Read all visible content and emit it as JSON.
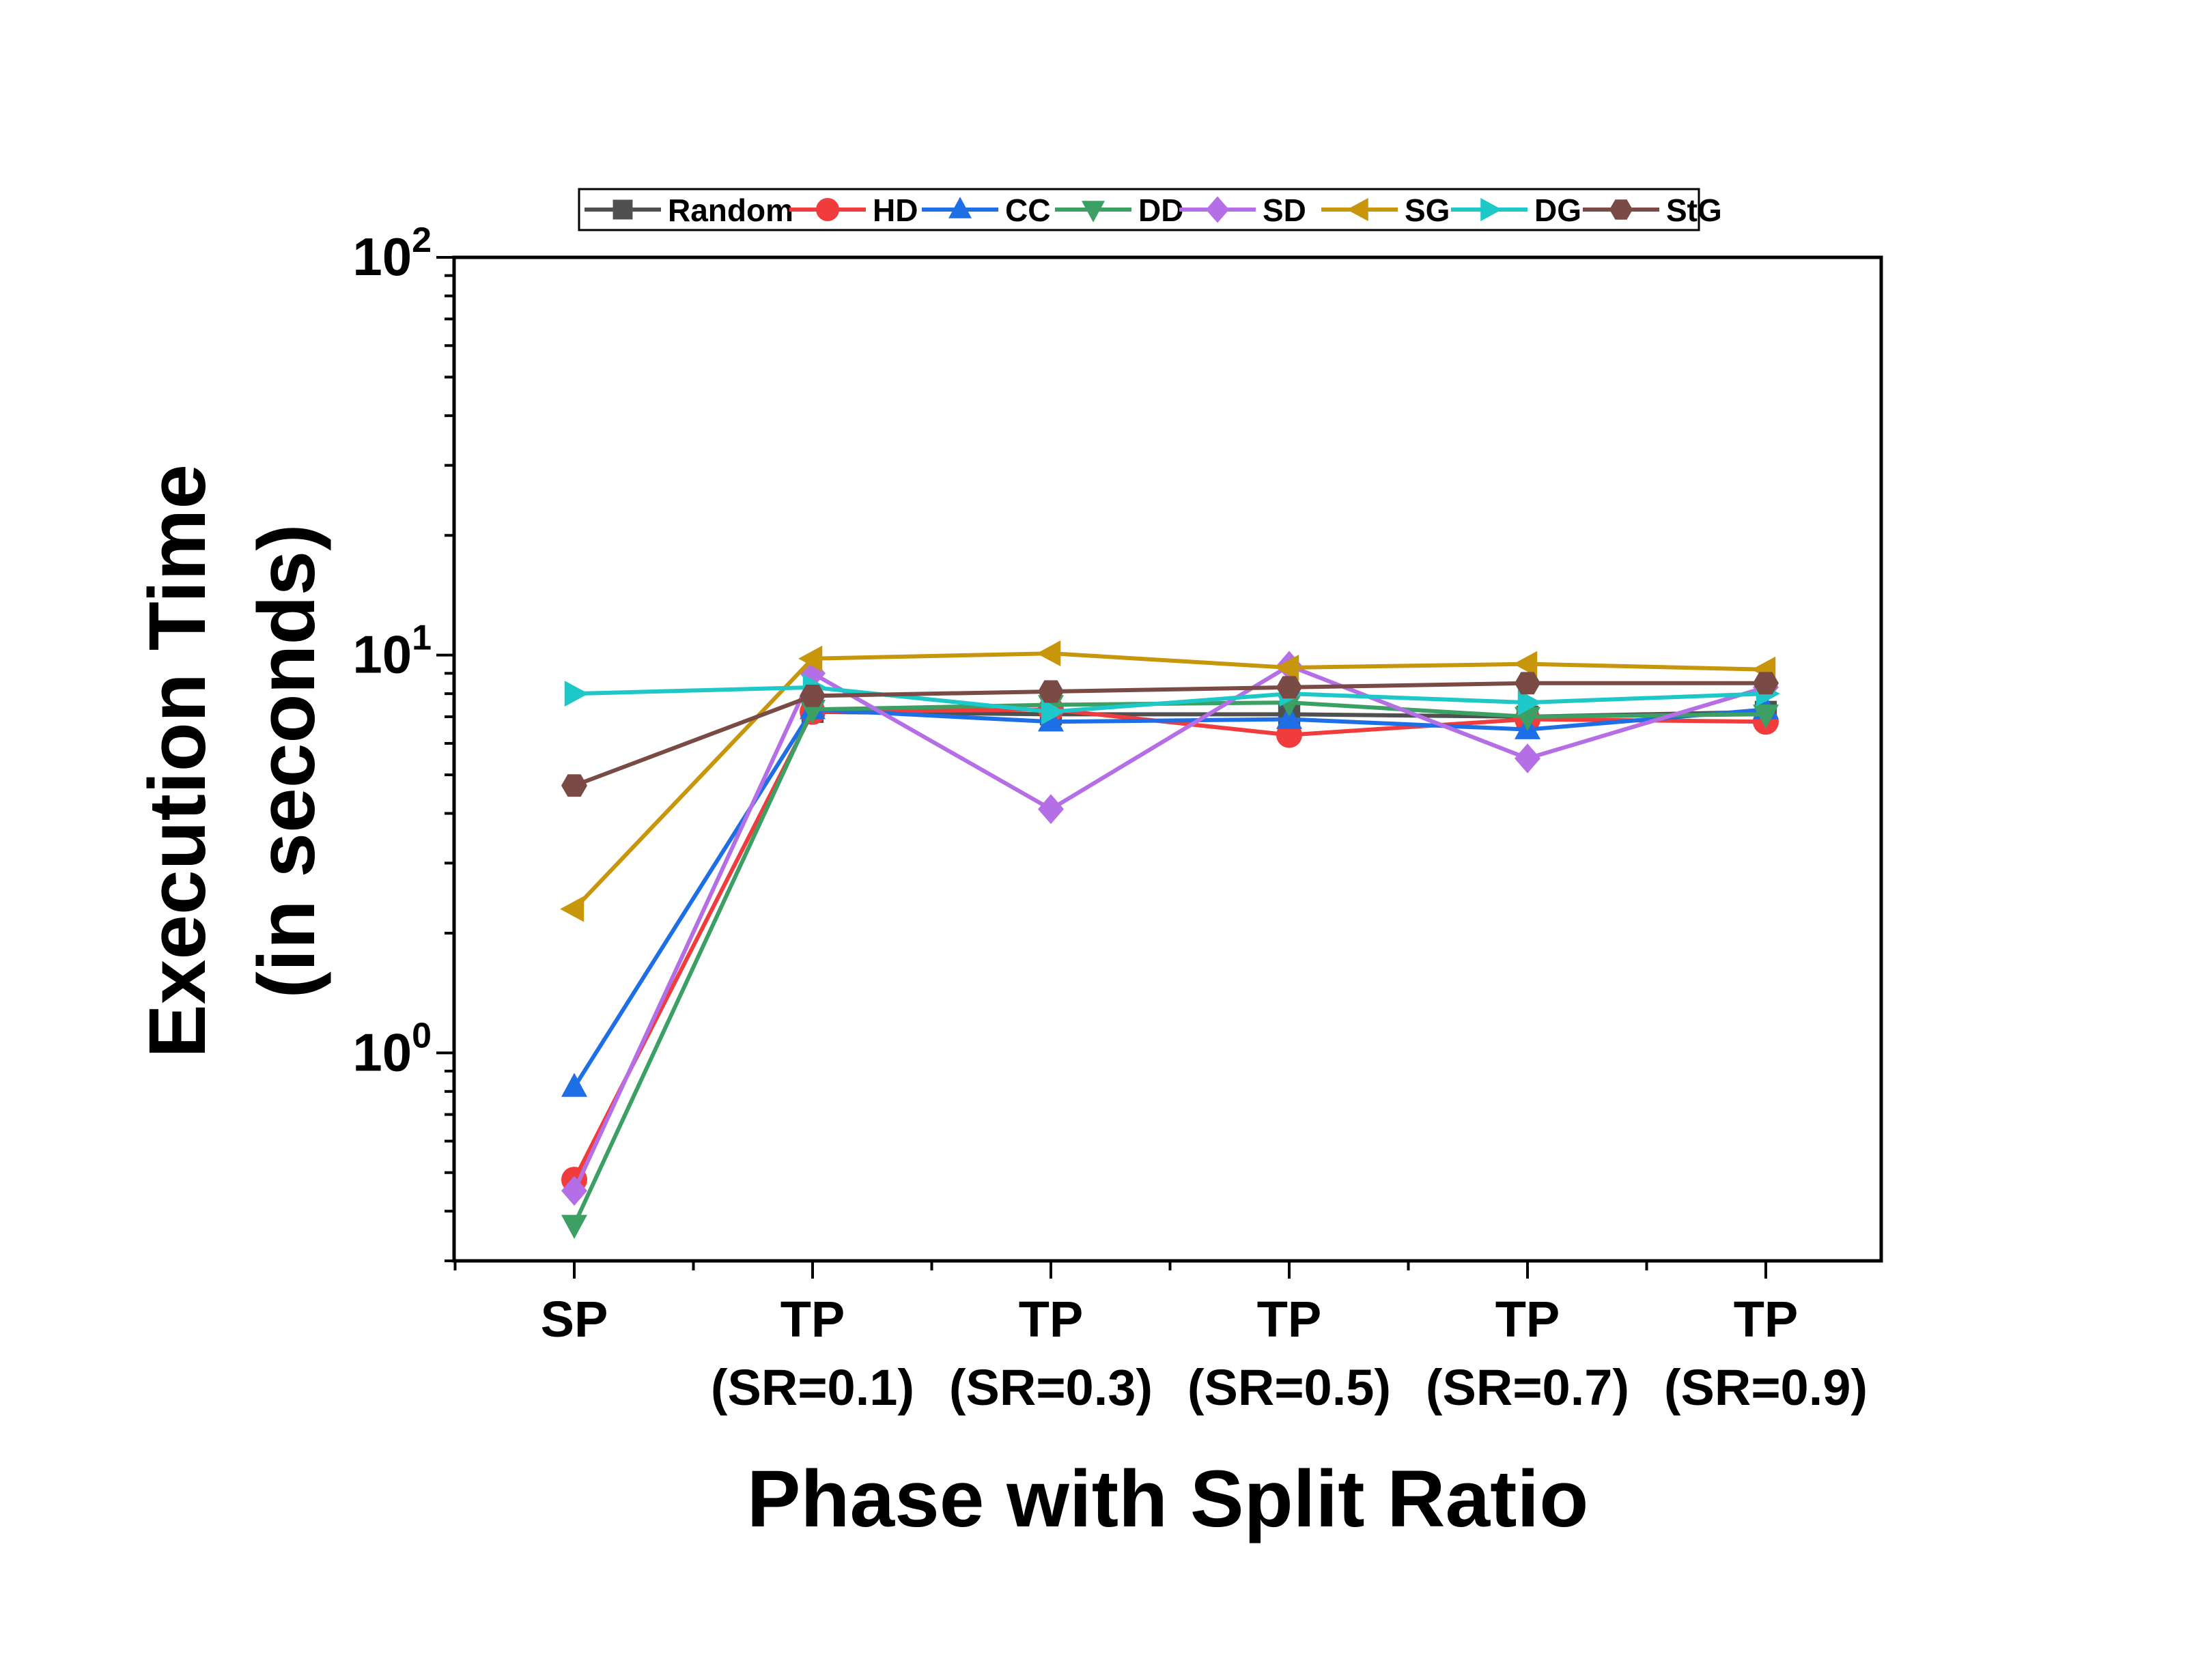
{
  "chart_data": {
    "type": "line",
    "xlabel": "Phase with Split Ratio",
    "ylabel_lines": [
      "Execution Time",
      "(in seconds)"
    ],
    "categories": [
      [
        "SP"
      ],
      [
        "TP",
        "(SR=0.1)"
      ],
      [
        "TP",
        "(SR=0.3)"
      ],
      [
        "TP",
        "(SR=0.5)"
      ],
      [
        "TP",
        "(SR=0.7)"
      ],
      [
        "TP",
        "(SR=0.9)"
      ]
    ],
    "yscale": "log",
    "ylim": [
      0.3,
      100
    ],
    "yticks": [
      {
        "value": 1,
        "base": "10",
        "exp": "0"
      },
      {
        "value": 10,
        "base": "10",
        "exp": "1"
      },
      {
        "value": 100,
        "base": "10",
        "exp": "2"
      }
    ],
    "legend_position": "top",
    "series": [
      {
        "name": "Random",
        "color": "#505050",
        "marker": "square",
        "values": [
          null,
          7.2,
          7.1,
          7.1,
          7.0,
          7.2
        ]
      },
      {
        "name": "HD",
        "color": "#f03c3c",
        "marker": "circle",
        "values": [
          0.48,
          7.2,
          7.3,
          6.3,
          6.9,
          6.8
        ]
      },
      {
        "name": "CC",
        "color": "#1e6ee6",
        "marker": "triangle-up",
        "values": [
          0.82,
          7.3,
          6.8,
          6.9,
          6.5,
          7.3
        ]
      },
      {
        "name": "DD",
        "color": "#3ca064",
        "marker": "triangle-down",
        "values": [
          0.37,
          7.3,
          7.5,
          7.6,
          7.0,
          7.1
        ]
      },
      {
        "name": "SD",
        "color": "#b46ee6",
        "marker": "diamond",
        "values": [
          0.45,
          9.0,
          4.1,
          9.4,
          5.5,
          8.3
        ]
      },
      {
        "name": "SG",
        "color": "#c8960a",
        "marker": "triangle-left",
        "values": [
          2.3,
          9.8,
          10.1,
          9.3,
          9.5,
          9.2
        ]
      },
      {
        "name": "DG",
        "color": "#1ec8c8",
        "marker": "triangle-right",
        "values": [
          8.0,
          8.3,
          7.2,
          8.0,
          7.6,
          8.0
        ]
      },
      {
        "name": "StG",
        "color": "#7a4a45",
        "marker": "hexagon",
        "values": [
          4.7,
          7.9,
          8.1,
          8.3,
          8.5,
          8.5
        ]
      }
    ]
  }
}
